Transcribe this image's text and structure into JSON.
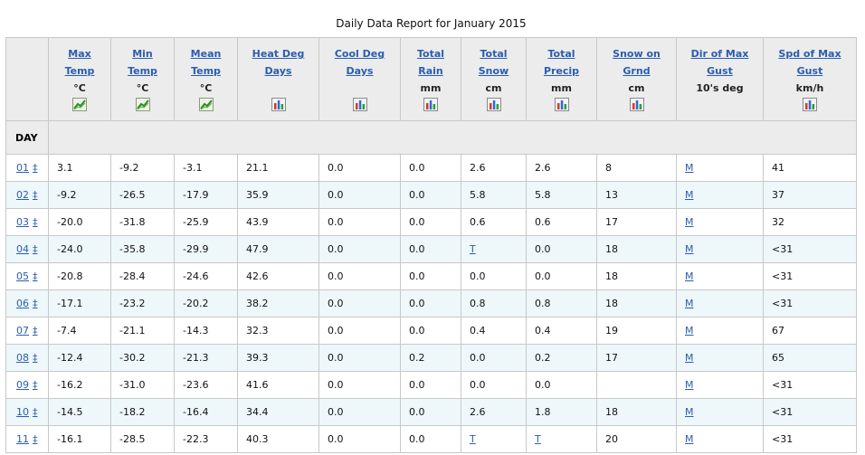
{
  "title": "Daily Data Report for January 2015",
  "corner_label": "",
  "day_label": "DAY",
  "columns": [
    {
      "line1": "Max",
      "line2": "Temp",
      "unit": "°C",
      "icon": "line-chart-icon"
    },
    {
      "line1": "Min",
      "line2": "Temp",
      "unit": "°C",
      "icon": "line-chart-icon"
    },
    {
      "line1": "Mean",
      "line2": "Temp",
      "unit": "°C",
      "icon": "line-chart-icon"
    },
    {
      "line1": "Heat Deg",
      "line2": "Days",
      "unit": "",
      "icon": "bar-chart-icon"
    },
    {
      "line1": "Cool Deg",
      "line2": "Days",
      "unit": "",
      "icon": "bar-chart-icon"
    },
    {
      "line1": "Total",
      "line2": "Rain",
      "unit": "mm",
      "icon": "bar-chart-icon"
    },
    {
      "line1": "Total",
      "line2": "Snow",
      "unit": "cm",
      "icon": "bar-chart-icon"
    },
    {
      "line1": "Total",
      "line2": "Precip",
      "unit": "mm",
      "icon": "bar-chart-icon"
    },
    {
      "line1": "Snow on",
      "line2": "Grnd",
      "unit": "cm",
      "icon": "bar-chart-icon"
    },
    {
      "line1": "Dir of Max",
      "line2": "Gust",
      "unit": "10's deg",
      "icon": ""
    },
    {
      "line1": "Spd of Max",
      "line2": "Gust",
      "unit": "km/h",
      "icon": "bar-chart-icon"
    }
  ],
  "dagger": "‡",
  "rows": [
    {
      "day": "01",
      "cells": [
        "3.1",
        "-9.2",
        "-3.1",
        "21.1",
        "0.0",
        "0.0",
        "2.6",
        "2.6",
        "8",
        "M",
        "41"
      ]
    },
    {
      "day": "02",
      "cells": [
        "-9.2",
        "-26.5",
        "-17.9",
        "35.9",
        "0.0",
        "0.0",
        "5.8",
        "5.8",
        "13",
        "M",
        "37"
      ]
    },
    {
      "day": "03",
      "cells": [
        "-20.0",
        "-31.8",
        "-25.9",
        "43.9",
        "0.0",
        "0.0",
        "0.6",
        "0.6",
        "17",
        "M",
        "32"
      ]
    },
    {
      "day": "04",
      "cells": [
        "-24.0",
        "-35.8",
        "-29.9",
        "47.9",
        "0.0",
        "0.0",
        "T",
        "0.0",
        "18",
        "M",
        "<31"
      ]
    },
    {
      "day": "05",
      "cells": [
        "-20.8",
        "-28.4",
        "-24.6",
        "42.6",
        "0.0",
        "0.0",
        "0.0",
        "0.0",
        "18",
        "M",
        "<31"
      ]
    },
    {
      "day": "06",
      "cells": [
        "-17.1",
        "-23.2",
        "-20.2",
        "38.2",
        "0.0",
        "0.0",
        "0.8",
        "0.8",
        "18",
        "M",
        "<31"
      ]
    },
    {
      "day": "07",
      "cells": [
        "-7.4",
        "-21.1",
        "-14.3",
        "32.3",
        "0.0",
        "0.0",
        "0.4",
        "0.4",
        "19",
        "M",
        "67"
      ]
    },
    {
      "day": "08",
      "cells": [
        "-12.4",
        "-30.2",
        "-21.3",
        "39.3",
        "0.0",
        "0.2",
        "0.0",
        "0.2",
        "17",
        "M",
        "65"
      ]
    },
    {
      "day": "09",
      "cells": [
        "-16.2",
        "-31.0",
        "-23.6",
        "41.6",
        "0.0",
        "0.0",
        "0.0",
        "0.0",
        "",
        "M",
        "<31"
      ]
    },
    {
      "day": "10",
      "cells": [
        "-14.5",
        "-18.2",
        "-16.4",
        "34.4",
        "0.0",
        "0.0",
        "2.6",
        "1.8",
        "18",
        "M",
        "<31"
      ]
    },
    {
      "day": "11",
      "cells": [
        "-16.1",
        "-28.5",
        "-22.3",
        "40.3",
        "0.0",
        "0.0",
        "T",
        "T",
        "20",
        "M",
        "<31"
      ]
    }
  ],
  "linked_values": [
    "M",
    "T"
  ]
}
